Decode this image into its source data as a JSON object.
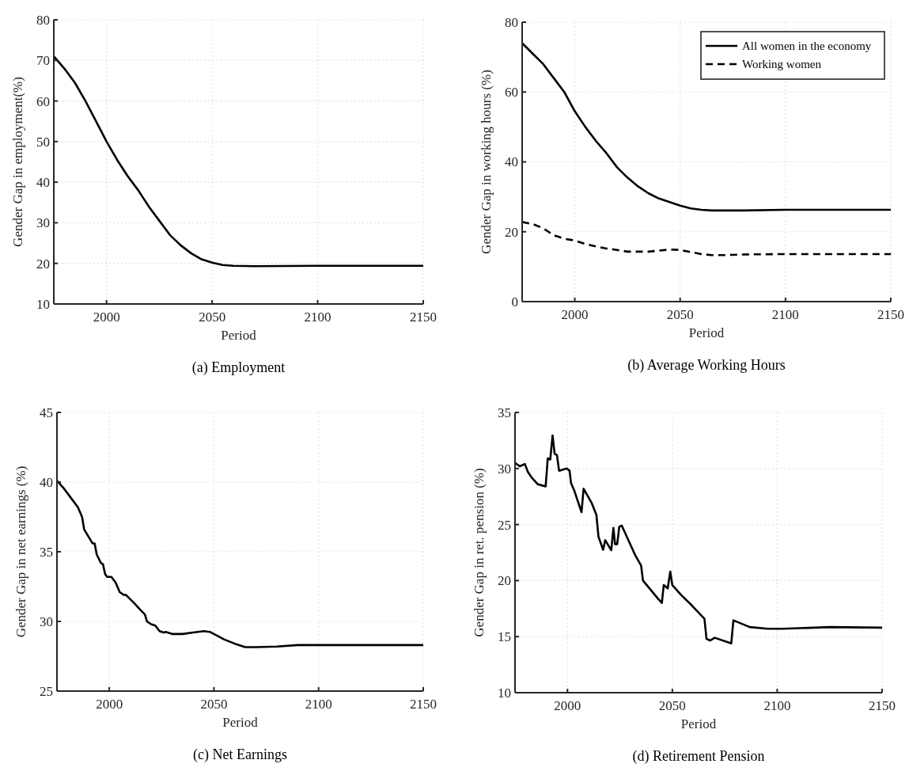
{
  "chart_data": [
    {
      "type": "line",
      "title": "(a) Employment",
      "xlabel": "Period",
      "ylabel": "Gender Gap in employment(%)",
      "xlim": [
        1975,
        2150
      ],
      "xticks": [
        2000,
        2050,
        2100,
        2150
      ],
      "ylim": [
        10,
        80
      ],
      "yticks": [
        10,
        20,
        30,
        40,
        50,
        60,
        70,
        80
      ],
      "grid": true,
      "line_style": "solid",
      "series": [
        {
          "color": "#000000",
          "x": [
            1975,
            1980,
            1985,
            1990,
            1995,
            2000,
            2005,
            2010,
            2015,
            2020,
            2025,
            2030,
            2035,
            2040,
            2045,
            2050,
            2055,
            2060,
            2070,
            2100,
            2150
          ],
          "values": [
            71,
            68,
            64.5,
            60,
            55,
            50,
            45.5,
            41.5,
            38,
            34,
            30.5,
            27,
            24.5,
            22.5,
            21,
            20.2,
            19.6,
            19.4,
            19.3,
            19.4,
            19.4
          ]
        }
      ]
    },
    {
      "type": "line",
      "title": "(b) Average Working Hours",
      "xlabel": "Period",
      "ylabel": "Gender Gap in working hours (%)",
      "xlim": [
        1975,
        2150
      ],
      "xticks": [
        2000,
        2050,
        2100,
        2150
      ],
      "ylim": [
        0,
        80
      ],
      "yticks": [
        0,
        20,
        40,
        60,
        80
      ],
      "grid": true,
      "legend": "top right",
      "series": [
        {
          "name": "All women in the economy",
          "color": "#000000",
          "line_style": "solid",
          "x": [
            1975,
            1980,
            1985,
            1990,
            1995,
            2000,
            2005,
            2010,
            2015,
            2020,
            2025,
            2030,
            2035,
            2040,
            2045,
            2050,
            2055,
            2060,
            2065,
            2080,
            2100,
            2150
          ],
          "values": [
            74,
            71,
            68,
            64,
            60,
            54.5,
            50,
            46,
            42.5,
            38.5,
            35.5,
            33,
            31,
            29.5,
            28.5,
            27.5,
            26.7,
            26.3,
            26.1,
            26.1,
            26.3,
            26.3
          ]
        },
        {
          "name": "Working women",
          "color": "#000000",
          "line_style": "dashed",
          "x": [
            1975,
            1980,
            1985,
            1990,
            1995,
            2000,
            2005,
            2010,
            2015,
            2020,
            2025,
            2030,
            2035,
            2040,
            2045,
            2050,
            2055,
            2060,
            2065,
            2070,
            2080,
            2100,
            2150
          ],
          "values": [
            22.8,
            22.2,
            21,
            19,
            18,
            17.5,
            16.5,
            15.8,
            15.2,
            14.8,
            14.3,
            14.3,
            14.3,
            14.6,
            14.9,
            14.8,
            14.2,
            13.6,
            13.3,
            13.3,
            13.5,
            13.6,
            13.6
          ]
        }
      ]
    },
    {
      "type": "line",
      "title": "(c) Net Earnings",
      "xlabel": "Period",
      "ylabel": "Gender Gap in net earnings (%)",
      "xlim": [
        1975,
        2150
      ],
      "xticks": [
        2000,
        2050,
        2100,
        2150
      ],
      "ylim": [
        25,
        45
      ],
      "yticks": [
        25,
        30,
        35,
        40,
        45
      ],
      "grid": true,
      "line_style": "solid",
      "series": [
        {
          "color": "#000000",
          "x": [
            1975,
            1978,
            1982,
            1985,
            1987,
            1988,
            1990,
            1992,
            1993,
            1994,
            1996,
            1997,
            1998,
            1999,
            2001,
            2003,
            2005,
            2007,
            2008,
            2010,
            2012,
            2015,
            2017,
            2018,
            2020,
            2022,
            2024,
            2026,
            2027,
            2030,
            2035,
            2040,
            2045,
            2048,
            2050,
            2055,
            2060,
            2065,
            2070,
            2080,
            2090,
            2100,
            2120,
            2150
          ],
          "values": [
            40.1,
            39.6,
            38.8,
            38.2,
            37.5,
            36.6,
            36.1,
            35.6,
            35.6,
            34.8,
            34.2,
            34.1,
            33.4,
            33.2,
            33.2,
            32.8,
            32.1,
            31.9,
            31.9,
            31.6,
            31.3,
            30.8,
            30.5,
            30,
            29.8,
            29.7,
            29.3,
            29.2,
            29.25,
            29.1,
            29.1,
            29.2,
            29.3,
            29.25,
            29.1,
            28.7,
            28.4,
            28.15,
            28.15,
            28.2,
            28.3,
            28.3,
            28.3,
            28.3
          ]
        }
      ]
    },
    {
      "type": "line",
      "title": "(d) Retirement Pension",
      "xlabel": "Period",
      "ylabel": "Gender Gap in ret. pension (%)",
      "xlim": [
        1975,
        2150
      ],
      "xticks": [
        2000,
        2050,
        2100,
        2150
      ],
      "ylim": [
        10,
        35
      ],
      "yticks": [
        10,
        15,
        20,
        25,
        30,
        35
      ],
      "grid": true,
      "line_style": "solid",
      "series": [
        {
          "color": "#000000",
          "x": [
            1975,
            1977.3,
            1979.7,
            1981.1,
            1982.9,
            1985.8,
            1989.6,
            1990.6,
            1991.8,
            1992.9,
            1993.9,
            1995,
            1996,
            1999.6,
            2001,
            2001.7,
            2003.1,
            2006.7,
            2007.7,
            2011.6,
            2013.8,
            2014.8,
            2017,
            2018,
            2020.9,
            2021.9,
            2022.7,
            2023.7,
            2024.7,
            2025.9,
            2029.8,
            2032.2,
            2035.1,
            2036,
            2040,
            2043.1,
            2045,
            2045.9,
            2047.8,
            2049,
            2050,
            2054.3,
            2059.2,
            2065.3,
            2066.3,
            2068,
            2070.2,
            2078.1,
            2079.1,
            2086.9,
            2095.5,
            2102.6,
            2125,
            2150
          ],
          "values": [
            30.5,
            30.2,
            30.4,
            29.7,
            29.2,
            28.6,
            28.4,
            30.9,
            30.8,
            32.95,
            31.3,
            31.2,
            29.8,
            30,
            29.8,
            28.7,
            28.1,
            26.1,
            28.2,
            26.9,
            25.85,
            23.9,
            22.75,
            23.6,
            22.7,
            24.7,
            23.25,
            23.25,
            24.8,
            24.9,
            23.3,
            22.3,
            21.35,
            20,
            19.1,
            18.4,
            18,
            19.6,
            19.3,
            20.8,
            19.6,
            18.7,
            17.8,
            16.6,
            14.8,
            14.65,
            14.9,
            14.4,
            16.45,
            15.85,
            15.7,
            15.7,
            15.85,
            15.8
          ]
        }
      ]
    }
  ]
}
